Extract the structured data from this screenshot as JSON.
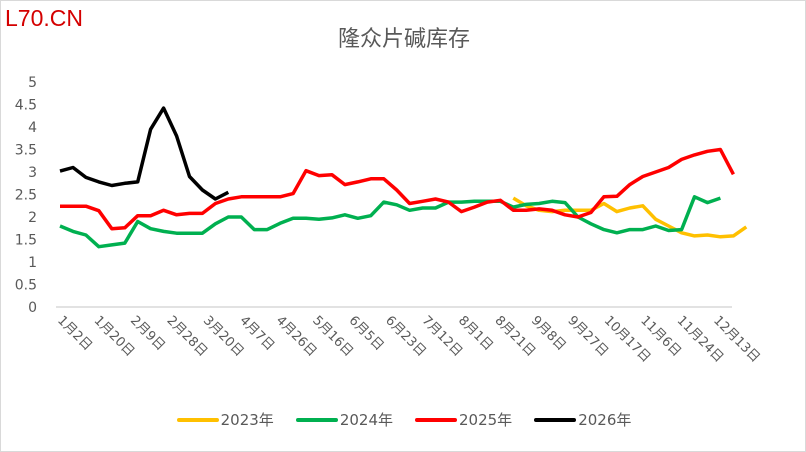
{
  "watermark": "L70.CN",
  "chart_data": {
    "type": "line",
    "title": "隆众片碱库存",
    "xlabel": "",
    "ylabel": "",
    "ylim": [
      0,
      5
    ],
    "yticks": [
      "0",
      "0.5",
      "1",
      "1.5",
      "2",
      "2.5",
      "3",
      "3.5",
      "4",
      "4.5",
      "5"
    ],
    "xtick_labels": [
      "1月2日",
      "1月20日",
      "2月9日",
      "2月28日",
      "3月20日",
      "4月7日",
      "4月26日",
      "5月16日",
      "6月5日",
      "6月23日",
      "7月12日",
      "8月1日",
      "8月21日",
      "9月8日",
      "9月27日",
      "10月17日",
      "11月6日",
      "11月24日",
      "12月13日"
    ],
    "legend_position": "bottom",
    "grid": false,
    "series": [
      {
        "name": "2023年",
        "color": "#FFC000",
        "start_index": 35,
        "values": [
          2.42,
          2.25,
          2.15,
          2.12,
          2.15,
          2.15,
          2.15,
          2.3,
          2.12,
          2.2,
          2.25,
          1.95,
          1.8,
          1.65,
          1.58,
          1.6,
          1.56,
          1.58,
          1.78
        ]
      },
      {
        "name": "2024年",
        "color": "#00B050",
        "start_index": 0,
        "values": [
          1.8,
          1.68,
          1.6,
          1.34,
          1.38,
          1.42,
          1.9,
          1.74,
          1.68,
          1.64,
          1.64,
          1.64,
          1.85,
          2.0,
          2.0,
          1.72,
          1.72,
          1.86,
          1.97,
          1.97,
          1.95,
          1.98,
          2.05,
          1.97,
          2.03,
          2.33,
          2.27,
          2.15,
          2.2,
          2.2,
          2.33,
          2.33,
          2.35,
          2.35,
          2.35,
          2.22,
          2.28,
          2.3,
          2.35,
          2.32,
          2.0,
          1.85,
          1.72,
          1.65,
          1.72,
          1.72,
          1.8,
          1.7,
          1.72,
          2.45,
          2.32,
          2.42
        ]
      },
      {
        "name": "2025年",
        "color": "#FF0000",
        "start_index": 0,
        "values": [
          2.24,
          2.24,
          2.24,
          2.14,
          1.74,
          1.76,
          2.03,
          2.03,
          2.15,
          2.05,
          2.08,
          2.08,
          2.3,
          2.4,
          2.45,
          2.45,
          2.45,
          2.45,
          2.52,
          3.03,
          2.92,
          2.94,
          2.72,
          2.78,
          2.85,
          2.85,
          2.6,
          2.3,
          2.35,
          2.4,
          2.33,
          2.12,
          2.22,
          2.33,
          2.37,
          2.15,
          2.15,
          2.18,
          2.15,
          2.05,
          2.0,
          2.1,
          2.45,
          2.46,
          2.72,
          2.9,
          3.0,
          3.1,
          3.28,
          3.38,
          3.46,
          3.5,
          2.95
        ]
      },
      {
        "name": "2026年",
        "color": "#000000",
        "start_index": 0,
        "values": [
          3.02,
          3.1,
          2.88,
          2.78,
          2.7,
          2.75,
          2.78,
          3.95,
          4.42,
          3.8,
          2.9,
          2.6,
          2.4,
          2.55
        ]
      }
    ]
  }
}
